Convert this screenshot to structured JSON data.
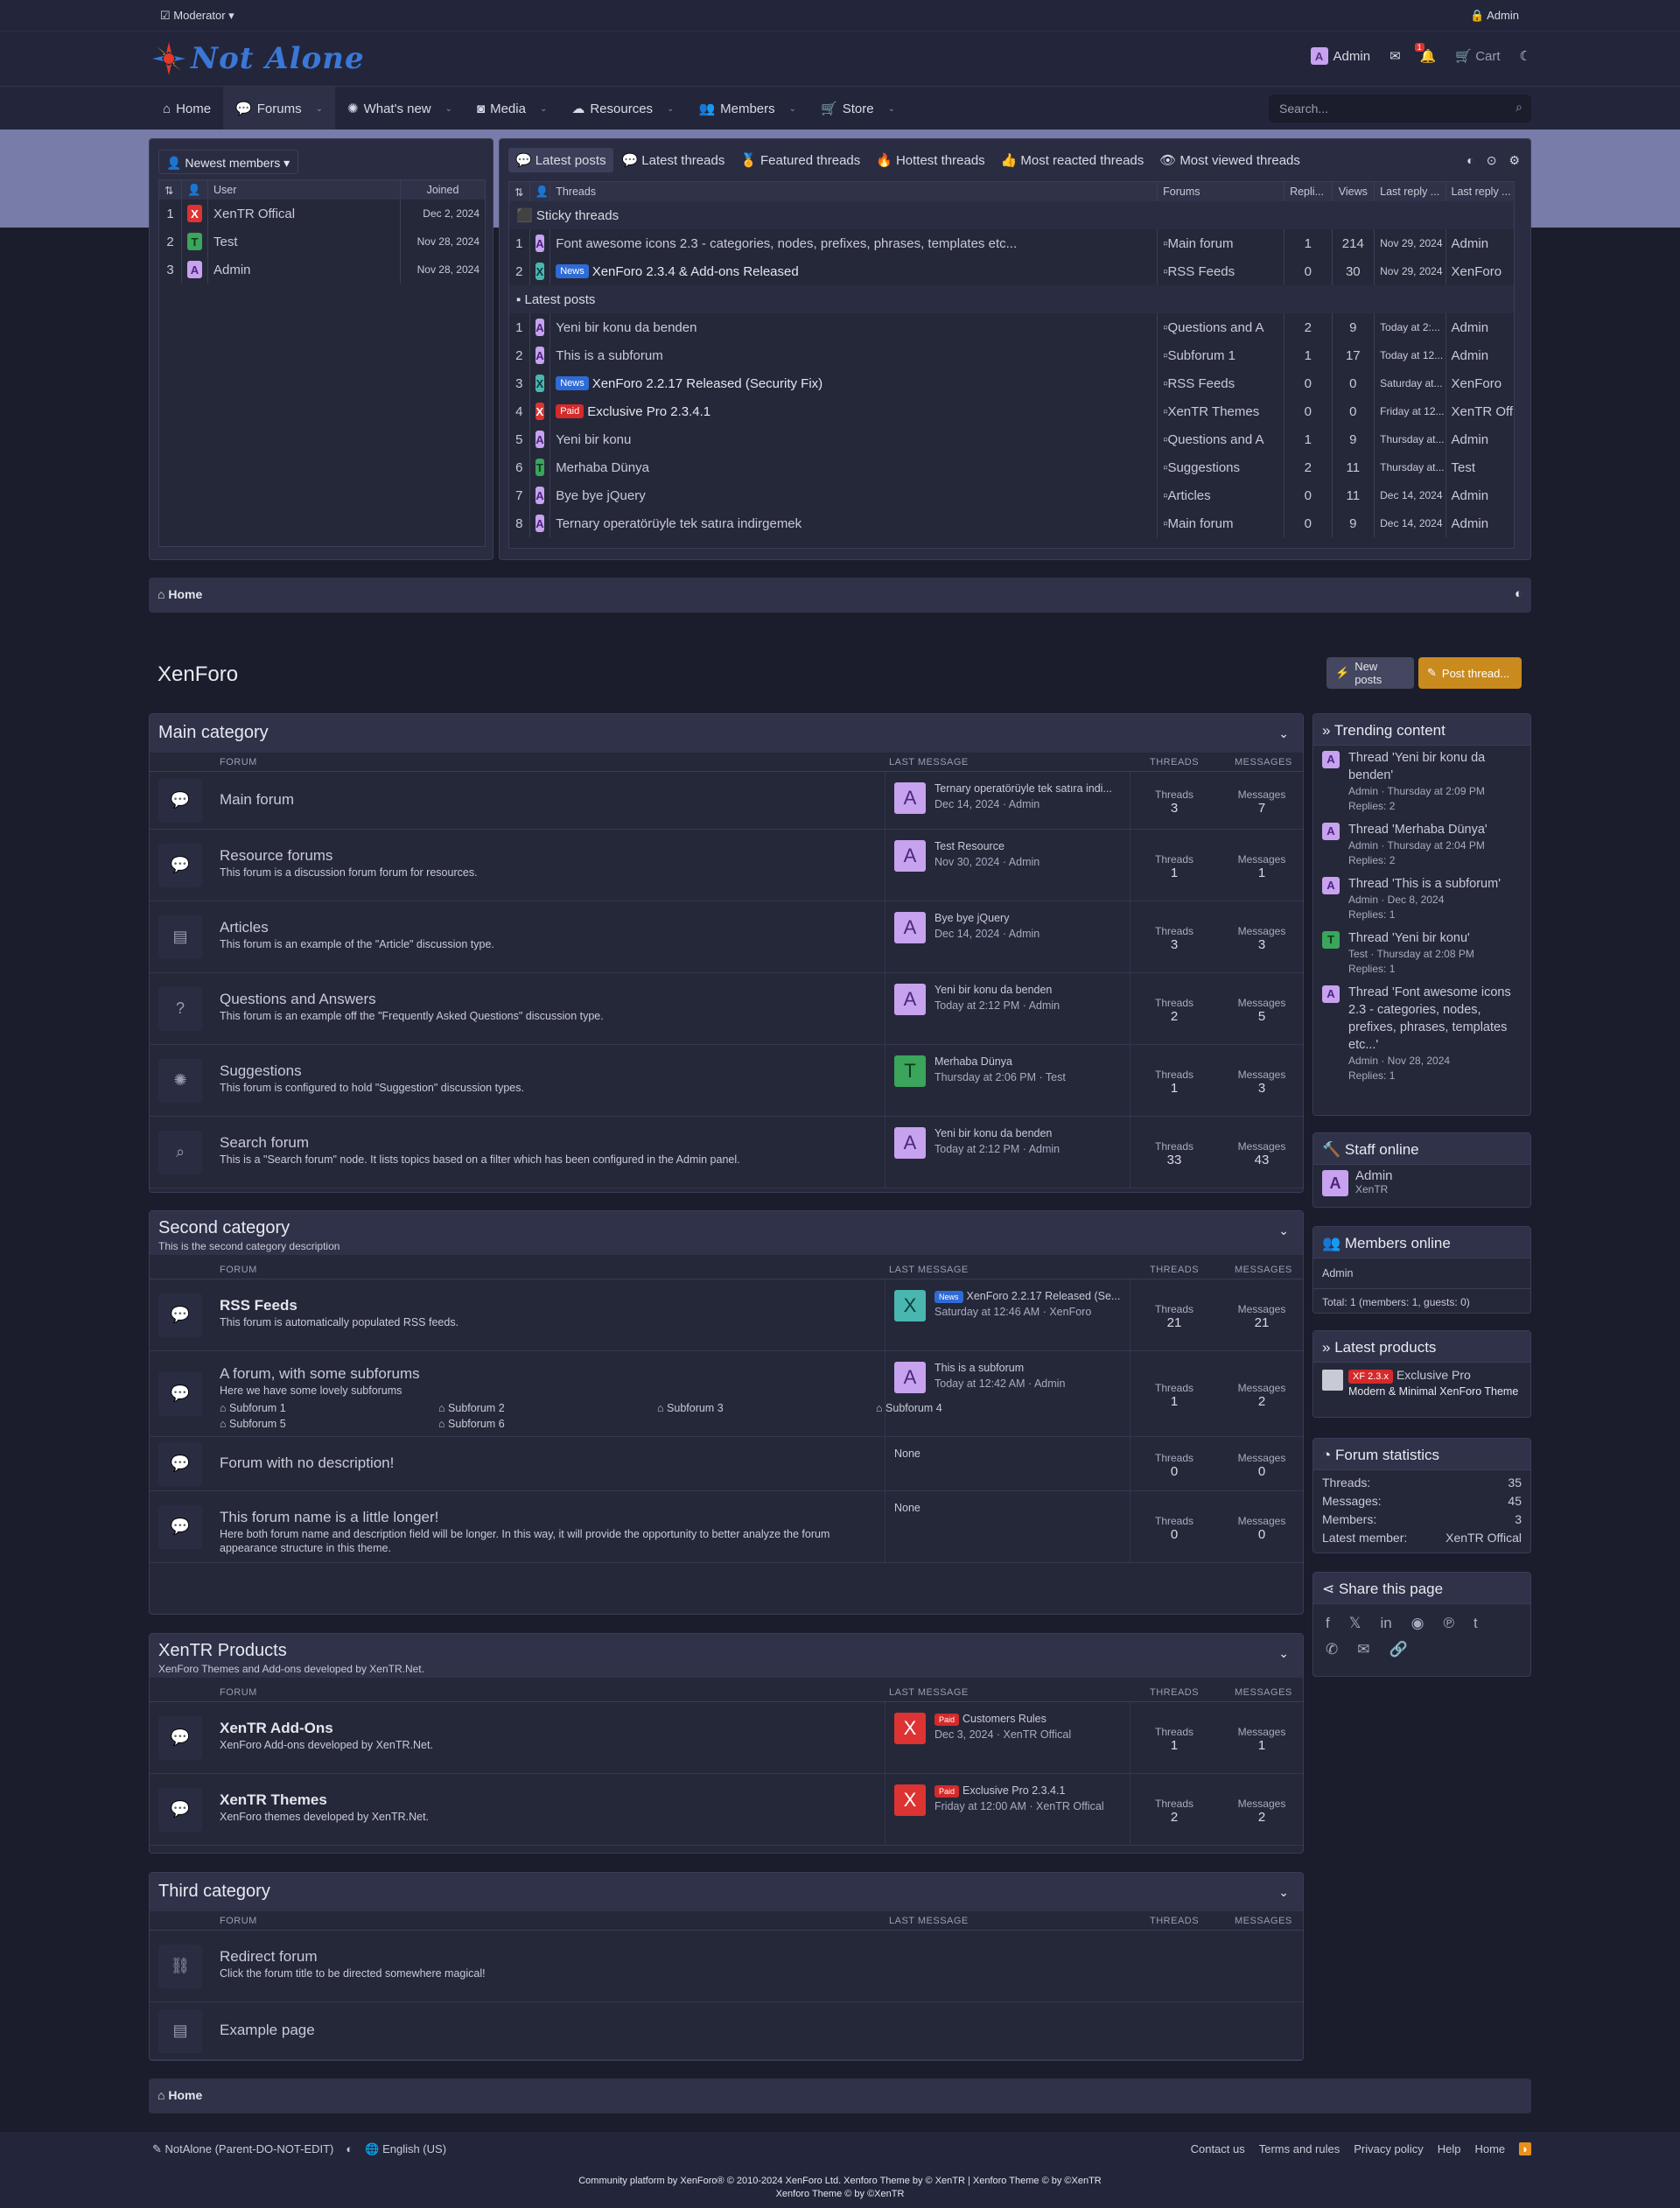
{
  "staff_bar": {
    "moderator": "Moderator",
    "admin": "Admin"
  },
  "header": {
    "logo_text": "Not Alone",
    "user": "Admin",
    "alert_count": "1",
    "cart": "Cart"
  },
  "nav": {
    "items": [
      {
        "label": "Home"
      },
      {
        "label": "Forums"
      },
      {
        "label": "What's new"
      },
      {
        "label": "Media"
      },
      {
        "label": "Resources"
      },
      {
        "label": "Members"
      },
      {
        "label": "Store"
      }
    ],
    "search_placeholder": "Search..."
  },
  "newest_members": {
    "title": "Newest members",
    "headers": {
      "user": "User",
      "joined": "Joined"
    },
    "rows": [
      {
        "n": "1",
        "letter": "X",
        "name": "XenTR Offical",
        "joined": "Dec 2, 2024"
      },
      {
        "n": "2",
        "letter": "T",
        "name": "Test",
        "joined": "Nov 28, 2024"
      },
      {
        "n": "3",
        "letter": "A",
        "name": "Admin",
        "joined": "Nov 28, 2024"
      }
    ]
  },
  "latest": {
    "tabs": [
      "Latest posts",
      "Latest threads",
      "Featured threads",
      "Hottest threads",
      "Most reacted threads",
      "Most viewed threads"
    ],
    "headers": {
      "threads": "Threads",
      "forums": "Forums",
      "replies": "Repli...",
      "views": "Views",
      "last_date": "Last reply ...",
      "last_user": "Last reply ..."
    },
    "sticky_label": "Sticky threads",
    "latest_label": "Latest posts",
    "sticky": [
      {
        "n": "1",
        "letter": "A",
        "tag": "",
        "title": "Font awesome icons 2.3 - categories, nodes, prefixes, phrases, templates etc...",
        "forum": "Main forum",
        "replies": "1",
        "views": "214",
        "date": "Nov 29, 2024",
        "user": "Admin"
      },
      {
        "n": "2",
        "letter": "X",
        "tag": "News",
        "title": "XenForo 2.3.4 & Add-ons Released",
        "forum": "RSS Feeds",
        "replies": "0",
        "views": "30",
        "date": "Nov 29, 2024",
        "user": "XenForo"
      }
    ],
    "posts": [
      {
        "n": "1",
        "letter": "A",
        "tag": "",
        "title": "Yeni bir konu da benden",
        "forum": "Questions and A",
        "replies": "2",
        "views": "9",
        "date": "Today at 2:...",
        "user": "Admin"
      },
      {
        "n": "2",
        "letter": "A",
        "tag": "",
        "title": "This is a subforum",
        "forum": "Subforum 1",
        "replies": "1",
        "views": "17",
        "date": "Today at 12...",
        "user": "Admin"
      },
      {
        "n": "3",
        "letter": "X",
        "tag": "News",
        "title": "XenForo 2.2.17 Released (Security Fix)",
        "forum": "RSS Feeds",
        "replies": "0",
        "views": "0",
        "date": "Saturday at...",
        "user": "XenForo"
      },
      {
        "n": "4",
        "letter": "X",
        "tag": "Paid",
        "title": "Exclusive Pro 2.3.4.1",
        "forum": "XenTR Themes",
        "replies": "0",
        "views": "0",
        "date": "Friday at 12...",
        "user": "XenTR Off"
      },
      {
        "n": "5",
        "letter": "A",
        "tag": "",
        "title": "Yeni bir konu",
        "forum": "Questions and A",
        "replies": "1",
        "views": "9",
        "date": "Thursday at...",
        "user": "Admin"
      },
      {
        "n": "6",
        "letter": "T",
        "tag": "",
        "title": "Merhaba Dünya",
        "forum": "Suggestions",
        "replies": "2",
        "views": "11",
        "date": "Thursday at...",
        "user": "Test"
      },
      {
        "n": "7",
        "letter": "A",
        "tag": "",
        "title": "Bye bye jQuery",
        "forum": "Articles",
        "replies": "0",
        "views": "11",
        "date": "Dec 14, 2024",
        "user": "Admin"
      },
      {
        "n": "8",
        "letter": "A",
        "tag": "",
        "title": "Ternary operatörüyle tek satıra indirgemek",
        "forum": "Main forum",
        "replies": "0",
        "views": "9",
        "date": "Dec 14, 2024",
        "user": "Admin"
      }
    ]
  },
  "breadcrumb": {
    "home": "Home"
  },
  "page": {
    "title": "XenForo",
    "new_posts": "New posts",
    "post_thread": "Post thread..."
  },
  "columns": {
    "forum": "FORUM",
    "last_message": "LAST MESSAGE",
    "threads": "THREADS",
    "messages": "MESSAGES",
    "threads_label": "Threads",
    "messages_label": "Messages"
  },
  "cat1": {
    "title": "Main category",
    "forums": [
      {
        "name": "Main forum",
        "desc": "",
        "lm_title": "Ternary operatörüyle tek satıra indi...",
        "lm_meta": "Dec 14, 2024 · Admin",
        "letter": "A",
        "threads": "3",
        "messages": "7"
      },
      {
        "name": "Resource forums",
        "desc": "This forum is a discussion forum forum for resources.",
        "lm_title": "Test Resource",
        "lm_meta": "Nov 30, 2024 · Admin",
        "letter": "A",
        "threads": "1",
        "messages": "1"
      },
      {
        "name": "Articles",
        "desc": "This forum is an example of the \"Article\" discussion type.",
        "lm_title": "Bye bye jQuery",
        "lm_meta": "Dec 14, 2024 · Admin",
        "letter": "A",
        "threads": "3",
        "messages": "3"
      },
      {
        "name": "Questions and Answers",
        "desc": "This forum is an example off the \"Frequently Asked Questions\" discussion type.",
        "lm_title": "Yeni bir konu da benden",
        "lm_meta": "Today at 2:12 PM · Admin",
        "letter": "A",
        "threads": "2",
        "messages": "5"
      },
      {
        "name": "Suggestions",
        "desc": "This forum is configured to hold \"Suggestion\" discussion types.",
        "lm_title": "Merhaba Dünya",
        "lm_meta": "Thursday at 2:06 PM · Test",
        "letter": "T",
        "threads": "1",
        "messages": "3"
      },
      {
        "name": "Search forum",
        "desc": "This is a \"Search forum\" node. It lists topics based on a filter which has been configured in the Admin panel.",
        "lm_title": "Yeni bir konu da benden",
        "lm_meta": "Today at 2:12 PM · Admin",
        "letter": "A",
        "threads": "33",
        "messages": "43"
      }
    ]
  },
  "cat2": {
    "title": "Second category",
    "desc": "This is the second category description",
    "forums": [
      {
        "name": "RSS Feeds",
        "desc": "This forum is automatically populated RSS feeds.",
        "lm_tag": "News",
        "lm_title": "XenForo 2.2.17 Released (Se...",
        "lm_meta": "Saturday at 12:46 AM · XenForo",
        "letter": "X",
        "threads": "21",
        "messages": "21"
      },
      {
        "name": "A forum, with some subforums",
        "desc": "Here we have some lovely subforums",
        "lm_title": "This is a subforum",
        "lm_meta": "Today at 12:42 AM · Admin",
        "letter": "A",
        "threads": "1",
        "messages": "2"
      },
      {
        "name": "Forum with no description!",
        "desc": "",
        "lm_title": "None",
        "threads": "0",
        "messages": "0"
      },
      {
        "name": "This forum name is a little longer!",
        "desc": "Here both forum name and description field will be longer. In this way, it will provide the opportunity to better analyze the forum appearance structure in this theme.",
        "lm_title": "None",
        "threads": "0",
        "messages": "0"
      }
    ],
    "subforums": [
      "Subforum 1",
      "Subforum 2",
      "Subforum 3",
      "Subforum 4",
      "Subforum 5",
      "Subforum 6"
    ]
  },
  "cat3": {
    "title": "XenTR Products",
    "desc": "XenForo Themes and Add-ons developed by XenTR.Net.",
    "forums": [
      {
        "name": "XenTR Add-Ons",
        "desc": "XenForo Add-ons developed by XenTR.Net.",
        "lm_tag": "Paid",
        "lm_title": "Customers Rules",
        "lm_meta": "Dec 3, 2024 · XenTR Offical",
        "letter": "X",
        "threads": "1",
        "messages": "1"
      },
      {
        "name": "XenTR Themes",
        "desc": "XenForo themes developed by XenTR.Net.",
        "lm_tag": "Paid",
        "lm_title": "Exclusive Pro 2.3.4.1",
        "lm_meta": "Friday at 12:00 AM · XenTR Offical",
        "letter": "X",
        "threads": "2",
        "messages": "2"
      }
    ]
  },
  "cat4": {
    "title": "Third category",
    "forums": [
      {
        "name": "Redirect forum",
        "desc": "Click the forum title to be directed somewhere magical!"
      },
      {
        "name": "Example page",
        "desc": ""
      }
    ]
  },
  "sidebar": {
    "trending": {
      "title": "Trending content",
      "items": [
        {
          "letter": "A",
          "title": "Thread 'Yeni bir konu da benden'",
          "meta": "Admin · Thursday at 2:09 PM",
          "replies": "Replies: 2"
        },
        {
          "letter": "A",
          "title": "Thread 'Merhaba Dünya'",
          "meta": "Admin · Thursday at 2:04 PM",
          "replies": "Replies: 2"
        },
        {
          "letter": "A",
          "title": "Thread 'This is a subforum'",
          "meta": "Admin · Dec 8, 2024",
          "replies": "Replies: 1"
        },
        {
          "letter": "T",
          "title": "Thread 'Yeni bir konu'",
          "meta": "Test · Thursday at 2:08 PM",
          "replies": "Replies: 1"
        },
        {
          "letter": "A",
          "title": "Thread 'Font awesome icons 2.3 - categories, nodes, prefixes, phrases, templates etc...'",
          "meta": "Admin · Nov 28, 2024",
          "replies": "Replies: 1"
        }
      ]
    },
    "staff": {
      "title": "Staff online",
      "name": "Admin",
      "role": "XenTR"
    },
    "members": {
      "title": "Members online",
      "list": "Admin",
      "total": "Total: 1 (members: 1, guests: 0)"
    },
    "products": {
      "title": "Latest products",
      "tag": "XF 2.3.x",
      "name": "Exclusive Pro",
      "desc": "Modern & Minimal XenForo Theme"
    },
    "stats": {
      "title": "Forum statistics",
      "rows": [
        {
          "k": "Threads:",
          "v": "35"
        },
        {
          "k": "Messages:",
          "v": "45"
        },
        {
          "k": "Members:",
          "v": "3"
        },
        {
          "k": "Latest member:",
          "v": "XenTR Offical"
        }
      ]
    },
    "share": {
      "title": "Share this page"
    }
  },
  "footer": {
    "style": "NotAlone (Parent-DO-NOT-EDIT)",
    "lang": "English (US)",
    "links": [
      "Contact us",
      "Terms and rules",
      "Privacy policy",
      "Help",
      "Home"
    ],
    "copy1": "Community platform by XenForo® © 2010-2024 XenForo Ltd. Xenforo Theme by © XenTR | Xenforo Theme © by ©XenTR",
    "copy2": "Xenforo Theme © by ©XenTR"
  },
  "colors": {
    "accent": "#787ca8",
    "bg": "#1b1d2c",
    "panel": "#2a2d42",
    "red": "#d33333",
    "orange": "#c98a1e"
  }
}
